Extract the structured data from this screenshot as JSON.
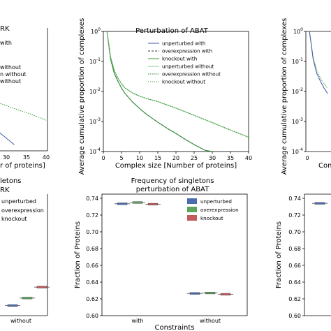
{
  "chart_data": [
    {
      "id": "top_left_partial",
      "type": "line",
      "title": "RK",
      "xlabel": "r of proteins]",
      "xticks": [
        "30",
        "35",
        "40"
      ],
      "legend": [
        "with",
        "without",
        "n without",
        "without"
      ],
      "colors": {
        "blue": "#3b56a8",
        "green": "#3a9a3a"
      },
      "series": [
        {
          "color": "green",
          "style": "dotted",
          "x": [
            28,
            30,
            32,
            34,
            36,
            38,
            40
          ],
          "y": [
            0.0042,
            0.0034,
            0.0027,
            0.0022,
            0.0018,
            0.0014,
            0.0011
          ]
        },
        {
          "color": "blue",
          "style": "solid",
          "x": [
            28,
            30,
            32
          ],
          "y": [
            0.00046,
            0.00028,
            0.00017
          ]
        }
      ]
    },
    {
      "id": "top_middle",
      "type": "line",
      "title": "Perturbation of ABAT",
      "xlabel": "Complex size [Number of proteins]",
      "ylabel": "Average cumulative proportion of complexes",
      "xlim": [
        0,
        40
      ],
      "ylim_log": [
        0.0001,
        1
      ],
      "xticks": [
        "0",
        "5",
        "10",
        "15",
        "20",
        "25",
        "30",
        "35",
        "40"
      ],
      "yticks": [
        "10^-4",
        "10^-3",
        "10^-2",
        "10^-1",
        "10^0"
      ],
      "legend": [
        "unperturbed with",
        "overexpression with",
        "knockout with",
        "unperturbed without",
        "overexpression without",
        "knockout without"
      ],
      "series": [
        {
          "name": "unperturbed with",
          "color": "#3b56a8",
          "style": "solid",
          "x": [
            1,
            2,
            3,
            4,
            5,
            6,
            8,
            10,
            12,
            15,
            18,
            20,
            22,
            25,
            28,
            30
          ],
          "y": [
            1.0,
            0.12,
            0.04,
            0.022,
            0.013,
            0.0085,
            0.0045,
            0.0027,
            0.0017,
            0.00095,
            0.00055,
            0.0004,
            0.00028,
            0.00017,
            0.00011,
            0.0001
          ]
        },
        {
          "name": "overexpression with",
          "color": "#333333",
          "style": "dashed",
          "x": [
            1,
            2,
            3,
            4,
            5,
            6,
            8,
            10,
            12,
            15,
            18,
            20,
            22,
            25,
            28,
            30
          ],
          "y": [
            1.0,
            0.12,
            0.04,
            0.022,
            0.013,
            0.0085,
            0.0045,
            0.0027,
            0.0017,
            0.00095,
            0.00055,
            0.0004,
            0.00028,
            0.00017,
            0.00011,
            0.0001
          ]
        },
        {
          "name": "knockout with",
          "color": "#3a9a3a",
          "style": "solid",
          "x": [
            1,
            2,
            3,
            4,
            5,
            6,
            8,
            10,
            12,
            15,
            18,
            20,
            22,
            25,
            28,
            30
          ],
          "y": [
            1.0,
            0.12,
            0.04,
            0.022,
            0.013,
            0.0085,
            0.0045,
            0.0027,
            0.0017,
            0.00095,
            0.00055,
            0.0004,
            0.00028,
            0.00017,
            0.00011,
            0.0001
          ]
        },
        {
          "name": "unperturbed without",
          "color": "#8ecf8e",
          "style": "solid",
          "x": [
            1,
            2,
            3,
            4,
            5,
            6,
            8,
            10,
            12,
            15,
            20,
            25,
            30,
            35,
            40
          ],
          "y": [
            1.0,
            0.14,
            0.05,
            0.028,
            0.018,
            0.013,
            0.009,
            0.007,
            0.0058,
            0.0046,
            0.0028,
            0.0016,
            0.00092,
            0.00052,
            0.0003
          ]
        },
        {
          "name": "overexpression without",
          "color": "#2f8a2f",
          "style": "dotted",
          "x": [
            1,
            2,
            3,
            4,
            5,
            6,
            8,
            10,
            12,
            15,
            20,
            25,
            30,
            35,
            40
          ],
          "y": [
            1.0,
            0.14,
            0.05,
            0.028,
            0.018,
            0.013,
            0.009,
            0.007,
            0.0058,
            0.0046,
            0.0028,
            0.0016,
            0.00092,
            0.00052,
            0.0003
          ]
        },
        {
          "name": "knockout without",
          "color": "#3a9a3a",
          "style": "dotted",
          "x": [
            1,
            2,
            3,
            4,
            5,
            6,
            8,
            10,
            12,
            15,
            20,
            25,
            30,
            35,
            40
          ],
          "y": [
            1.0,
            0.14,
            0.05,
            0.028,
            0.018,
            0.013,
            0.009,
            0.007,
            0.0058,
            0.0046,
            0.0028,
            0.0016,
            0.00092,
            0.00052,
            0.0003
          ]
        }
      ]
    },
    {
      "id": "top_right_partial",
      "type": "line",
      "ylabel": "Average cumulative proportion of complexes",
      "xlabel": "Comp",
      "yticks": [
        "10^-4",
        "10^-3",
        "10^-2",
        "10^-1",
        "10^0"
      ],
      "xticks": [
        "0"
      ],
      "series": [
        {
          "color": "#3a9a3a",
          "style": "dotted",
          "x": [
            1,
            2,
            3,
            4,
            5,
            6
          ],
          "y": [
            1.0,
            0.14,
            0.05,
            0.028,
            0.018,
            0.013
          ]
        },
        {
          "color": "#3b56a8",
          "style": "solid",
          "x": [
            1,
            2,
            3,
            4,
            5,
            6
          ],
          "y": [
            1.0,
            0.12,
            0.04,
            0.022,
            0.013,
            0.0085
          ]
        }
      ]
    },
    {
      "id": "bottom_left_partial",
      "type": "box",
      "title": "letons",
      "subtitle": "RK",
      "legend": [
        "unperturbed",
        "overexpression",
        "knockout"
      ],
      "categories": [
        "without"
      ],
      "groups": [
        {
          "category": "without",
          "values": [
            0.612,
            0.621,
            0.634
          ]
        }
      ]
    },
    {
      "id": "bottom_middle",
      "type": "box",
      "title": "Frequency of singletons",
      "subtitle": "perturbation of ABAT",
      "xlabel": "Constraints",
      "ylabel": "Fraction of Proteins",
      "ylim": [
        0.6,
        0.745
      ],
      "yticks": [
        "0.60",
        "0.62",
        "0.64",
        "0.66",
        "0.68",
        "0.70",
        "0.72",
        "0.74"
      ],
      "categories": [
        "with",
        "without"
      ],
      "legend": [
        "unperturbed",
        "overexpression",
        "knockout"
      ],
      "colors": [
        "#4c6cb0",
        "#5ea55e",
        "#c45a5a"
      ],
      "series": [
        {
          "name": "unperturbed",
          "values": [
            0.7335,
            0.6265
          ]
        },
        {
          "name": "overexpression",
          "values": [
            0.735,
            0.627
          ]
        },
        {
          "name": "knockout",
          "values": [
            0.733,
            0.6255
          ]
        }
      ]
    },
    {
      "id": "bottom_right_partial",
      "type": "box",
      "ylabel": "Fraction of Proteins",
      "yticks": [
        "0.60",
        "0.62",
        "0.64",
        "0.66",
        "0.68",
        "0.70",
        "0.72",
        "0.74"
      ],
      "series": [
        {
          "name": "unperturbed",
          "values": [
            0.734
          ]
        }
      ]
    }
  ]
}
